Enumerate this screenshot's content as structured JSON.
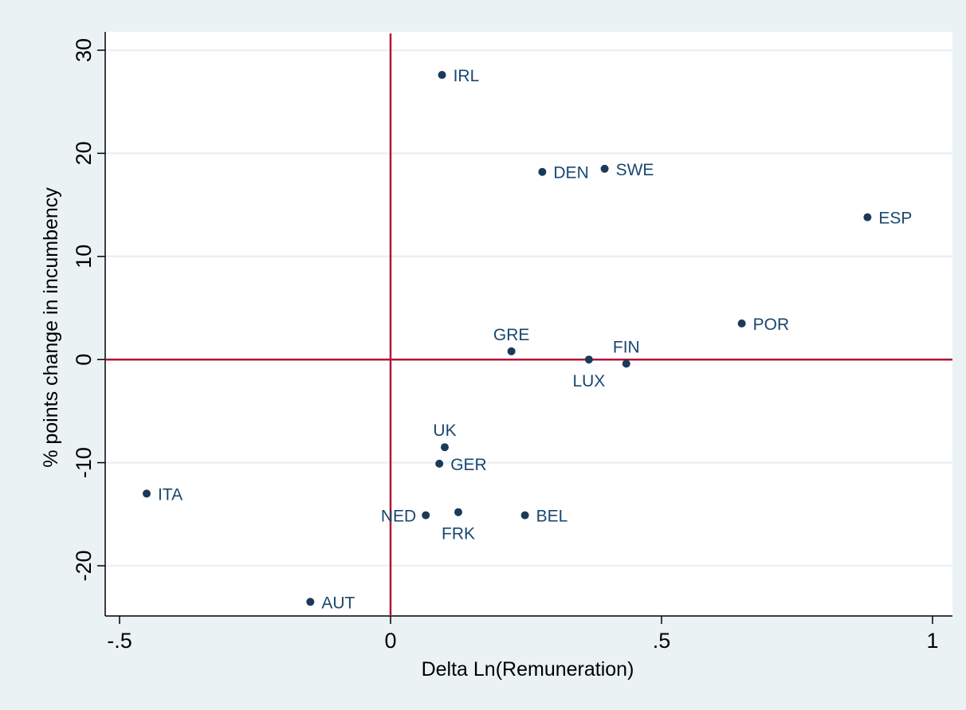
{
  "chart_data": {
    "type": "scatter",
    "title": "",
    "xlabel": "Delta Ln(Remuneration)",
    "ylabel": "% points change in incumbency",
    "xlim": [
      -0.5,
      1
    ],
    "ylim": [
      -25,
      30
    ],
    "x_ticks": [
      -0.5,
      0,
      0.5,
      1
    ],
    "x_tick_labels": [
      "-.5",
      "0",
      ".5",
      "1"
    ],
    "y_ticks": [
      -20,
      -10,
      0,
      10,
      20,
      30
    ],
    "y_tick_labels": [
      "-20",
      "-10",
      "0",
      "10",
      "20",
      "30"
    ],
    "grid": true,
    "reference_lines": {
      "x": 0,
      "y": 0,
      "color": "#b0153a"
    },
    "colors": {
      "plot_background": "#ffffff",
      "outer_background": "#eaf2f3",
      "marker": "#1a3a5a",
      "label": "#1a476f",
      "gridline": "#eaf2f3"
    },
    "points": [
      {
        "label": "IRL",
        "x": 0.095,
        "y": 27.6,
        "label_pos": "right"
      },
      {
        "label": "DEN",
        "x": 0.28,
        "y": 18.2,
        "label_pos": "right"
      },
      {
        "label": "SWE",
        "x": 0.395,
        "y": 18.5,
        "label_pos": "right"
      },
      {
        "label": "ESP",
        "x": 0.88,
        "y": 13.8,
        "label_pos": "right"
      },
      {
        "label": "POR",
        "x": 0.648,
        "y": 3.5,
        "label_pos": "right"
      },
      {
        "label": "GRE",
        "x": 0.223,
        "y": 0.8,
        "label_pos": "above"
      },
      {
        "label": "LUX",
        "x": 0.366,
        "y": 0.0,
        "label_pos": "below"
      },
      {
        "label": "FIN",
        "x": 0.435,
        "y": -0.4,
        "label_pos": "above"
      },
      {
        "label": "UK",
        "x": 0.1,
        "y": -8.5,
        "label_pos": "above"
      },
      {
        "label": "GER",
        "x": 0.09,
        "y": -10.1,
        "label_pos": "right"
      },
      {
        "label": "ITA",
        "x": -0.45,
        "y": -13.0,
        "label_pos": "right"
      },
      {
        "label": "NED",
        "x": 0.065,
        "y": -15.1,
        "label_pos": "left"
      },
      {
        "label": "FRK",
        "x": 0.125,
        "y": -14.8,
        "label_pos": "below"
      },
      {
        "label": "BEL",
        "x": 0.248,
        "y": -15.1,
        "label_pos": "right"
      },
      {
        "label": "AUT",
        "x": -0.148,
        "y": -23.5,
        "label_pos": "right"
      }
    ]
  }
}
